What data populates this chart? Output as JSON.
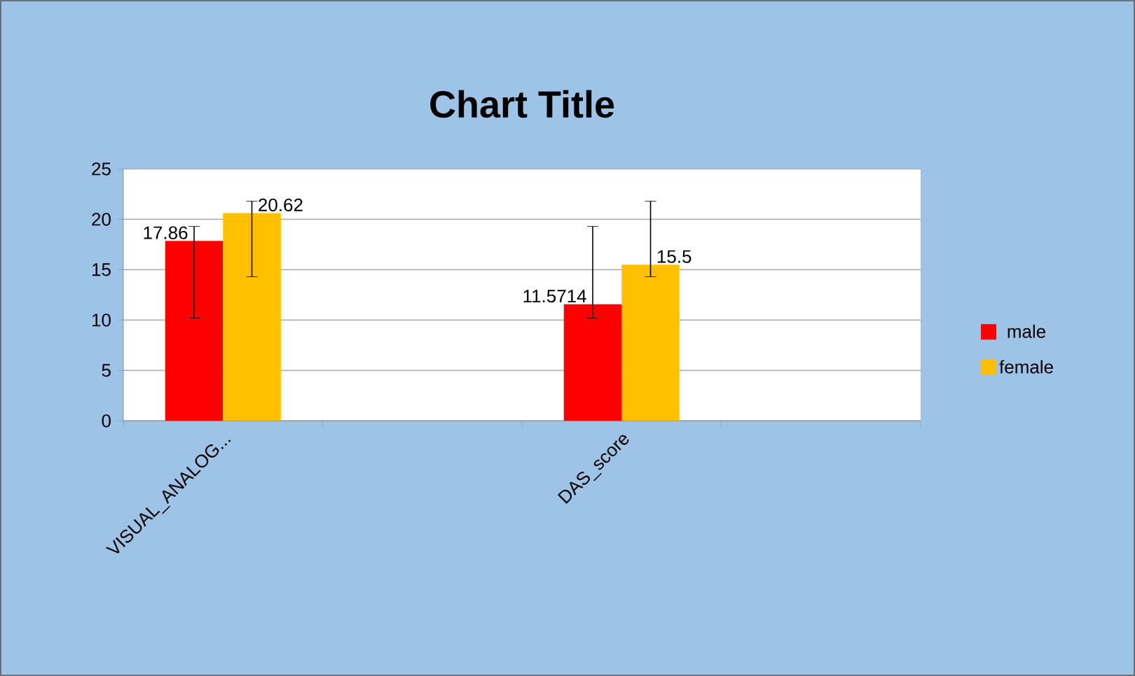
{
  "chart_data": {
    "type": "bar",
    "title": "Chart Title",
    "categories": [
      "VISUAL_ANALOG...",
      null,
      "DAS_score",
      null
    ],
    "series": [
      {
        "name": "male",
        "color": "#ff0000",
        "values": [
          17.86,
          null,
          11.5714,
          null
        ],
        "errors": [
          [
            10.2,
            19.3
          ],
          null,
          [
            10.2,
            19.3
          ],
          null
        ]
      },
      {
        "name": "female",
        "color": "#ffc000",
        "values": [
          20.62,
          null,
          15.5,
          null
        ],
        "errors": [
          [
            14.3,
            21.8
          ],
          null,
          [
            14.3,
            21.8
          ],
          null
        ]
      }
    ],
    "ylim": [
      0,
      25
    ],
    "yticks": [
      0,
      5,
      10,
      15,
      20,
      25
    ],
    "grid": "y",
    "legend": "right",
    "data_labels": true
  }
}
